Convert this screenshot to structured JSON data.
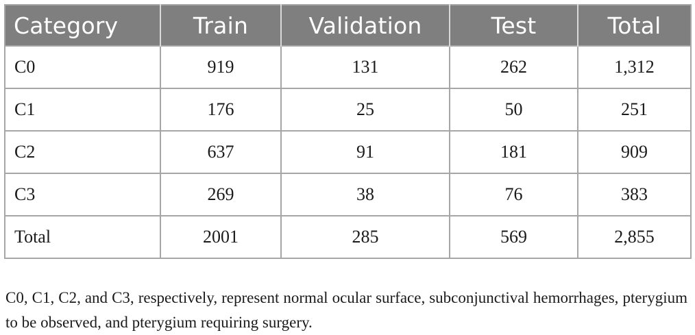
{
  "table": {
    "headers": [
      "Category",
      "Train",
      "Validation",
      "Test",
      "Total"
    ],
    "rows": [
      [
        "C0",
        "919",
        "131",
        "262",
        "1,312"
      ],
      [
        "C1",
        "176",
        "25",
        "50",
        "251"
      ],
      [
        "C2",
        "637",
        "91",
        "181",
        "909"
      ],
      [
        "C3",
        "269",
        "38",
        "76",
        "383"
      ],
      [
        "Total",
        "2001",
        "285",
        "569",
        "2,855"
      ]
    ]
  },
  "footnote": "C0, C1, C2, and C3, respectively, represent normal ocular surface, subconjunctival hemorrhages, pterygium to be observed, and pterygium requiring surgery.",
  "colors": {
    "header_bg": "#7f7f7f",
    "header_text": "#ffffff",
    "grid": "#a6a6a6"
  }
}
